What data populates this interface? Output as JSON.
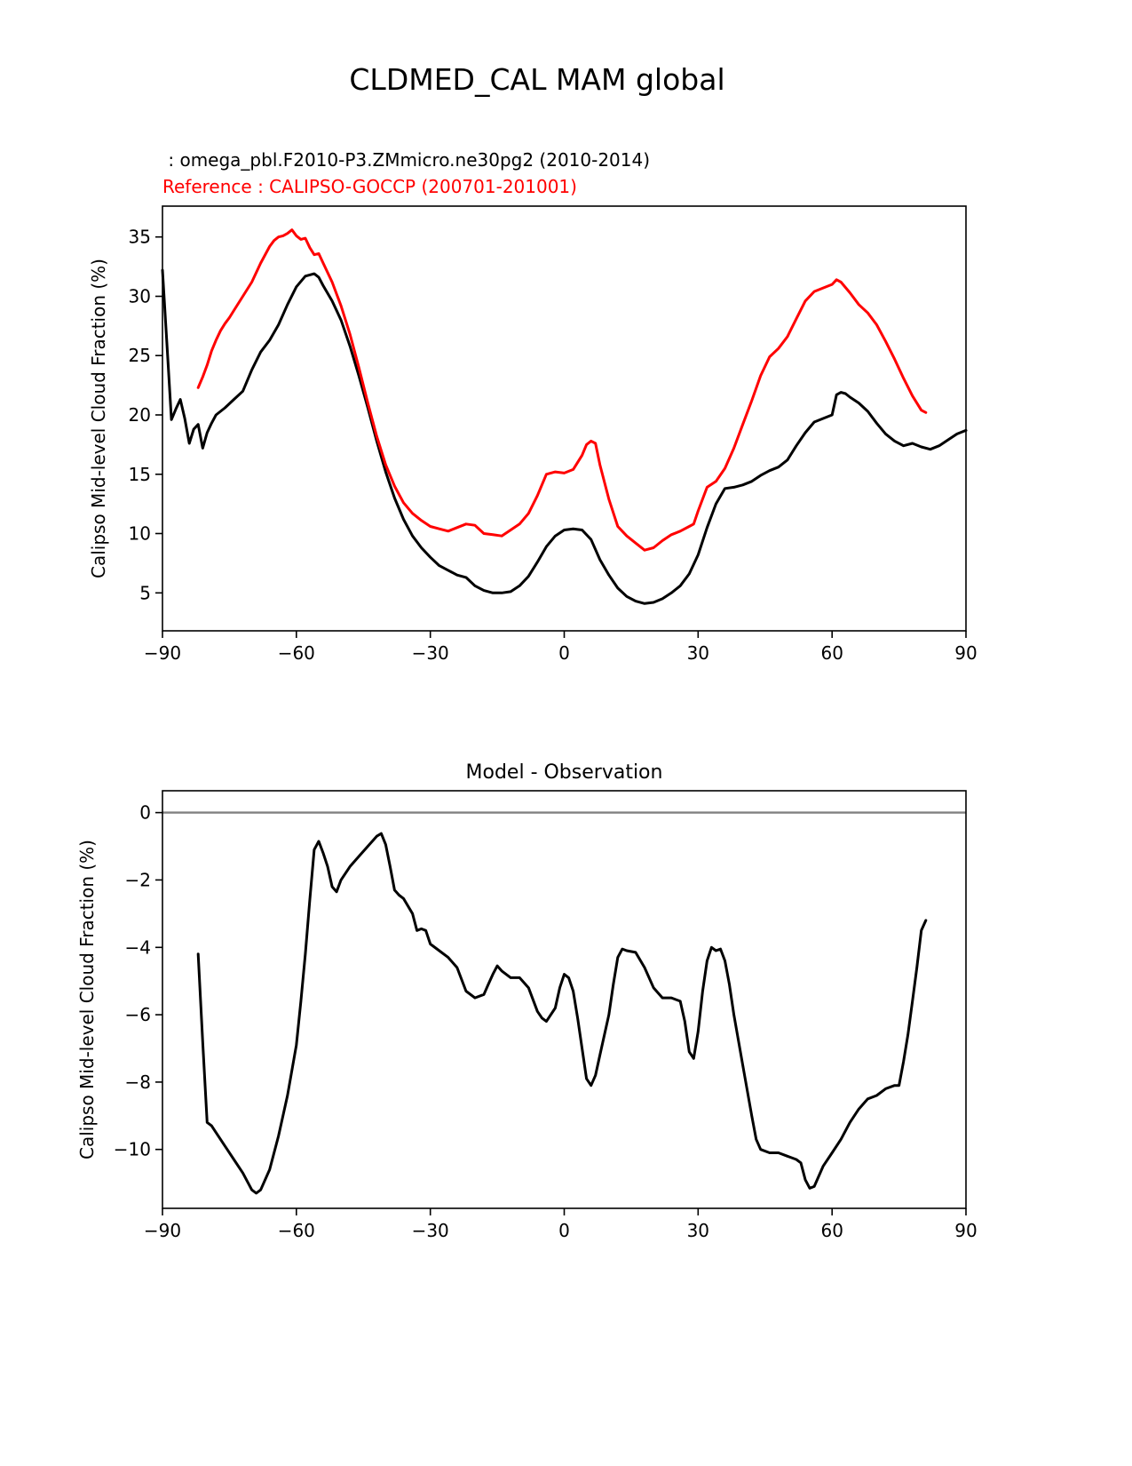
{
  "figure": {
    "title": "CLDMED_CAL MAM global",
    "subtitle_model": " : omega_pbl.F2010-P3.ZMmicro.ne30pg2 (2010-2014)",
    "subtitle_reference": "Reference : CALIPSO-GOCCP (200701-201001)",
    "model_color": "#000000",
    "reference_color": "#ff0000"
  },
  "chart_data": [
    {
      "type": "line",
      "name": "zonal-mean",
      "title": "",
      "xlabel": "",
      "ylabel": "Calipso Mid-level Cloud Fraction (%)",
      "xlim": [
        -90,
        90
      ],
      "ylim": [
        1.8,
        37.6
      ],
      "xticks": [
        -90,
        -60,
        -30,
        0,
        30,
        60,
        90
      ],
      "yticks": [
        5,
        10,
        15,
        20,
        25,
        30,
        35
      ],
      "grid": false,
      "legend": "none",
      "zero_line": false,
      "series": [
        {
          "name": "model",
          "label": "omega_pbl.F2010-P3.ZMmicro.ne30pg2 (2010-2014)",
          "color": "#000000",
          "x": [
            -90,
            -89,
            -88,
            -87,
            -86,
            -85,
            -84,
            -83,
            -82,
            -81,
            -80,
            -79,
            -78,
            -76,
            -74,
            -72,
            -70,
            -68,
            -66,
            -64,
            -62,
            -60,
            -58,
            -56,
            -55,
            -54,
            -52,
            -50,
            -48,
            -46,
            -44,
            -42,
            -40,
            -38,
            -36,
            -34,
            -32,
            -30,
            -28,
            -26,
            -24,
            -22,
            -20,
            -18,
            -16,
            -14,
            -12,
            -10,
            -8,
            -6,
            -4,
            -2,
            0,
            2,
            4,
            6,
            8,
            10,
            12,
            14,
            16,
            18,
            20,
            22,
            24,
            26,
            28,
            30,
            32,
            34,
            36,
            38,
            40,
            42,
            44,
            46,
            48,
            50,
            52,
            54,
            56,
            58,
            60,
            61,
            62,
            63,
            64,
            66,
            68,
            70,
            72,
            74,
            76,
            78,
            80,
            82,
            84,
            86,
            88,
            90
          ],
          "y": [
            32.2,
            26.0,
            19.6,
            20.5,
            21.3,
            19.7,
            17.6,
            18.8,
            19.2,
            17.2,
            18.5,
            19.3,
            20.0,
            20.6,
            21.3,
            22.0,
            23.8,
            25.3,
            26.3,
            27.6,
            29.3,
            30.8,
            31.7,
            31.9,
            31.6,
            30.9,
            29.6,
            28.0,
            25.8,
            23.3,
            20.6,
            17.8,
            15.2,
            13.0,
            11.2,
            9.8,
            8.8,
            8.0,
            7.3,
            6.9,
            6.5,
            6.3,
            5.6,
            5.2,
            5.0,
            5.0,
            5.1,
            5.6,
            6.4,
            7.6,
            8.9,
            9.8,
            10.3,
            10.4,
            10.3,
            9.5,
            7.8,
            6.5,
            5.4,
            4.7,
            4.3,
            4.1,
            4.2,
            4.5,
            5.0,
            5.6,
            6.6,
            8.2,
            10.5,
            12.5,
            13.8,
            13.9,
            14.1,
            14.4,
            14.9,
            15.3,
            15.6,
            16.2,
            17.4,
            18.5,
            19.4,
            19.7,
            20.0,
            21.7,
            21.9,
            21.8,
            21.5,
            21.0,
            20.3,
            19.3,
            18.4,
            17.8,
            17.4,
            17.6,
            17.3,
            17.1,
            17.4,
            17.9,
            18.4,
            18.7
          ]
        },
        {
          "name": "reference",
          "label": "CALIPSO-GOCCP (200701-201001)",
          "color": "#ff0000",
          "x": [
            -82,
            -81,
            -80,
            -79,
            -78,
            -77,
            -76,
            -75,
            -74,
            -72,
            -70,
            -68,
            -66,
            -65,
            -64,
            -63,
            -62,
            -61,
            -60,
            -59,
            -58,
            -57,
            -56,
            -55,
            -54,
            -52,
            -50,
            -48,
            -46,
            -44,
            -42,
            -40,
            -38,
            -36,
            -34,
            -32,
            -30,
            -28,
            -26,
            -24,
            -22,
            -20,
            -18,
            -16,
            -14,
            -12,
            -10,
            -8,
            -6,
            -4,
            -2,
            0,
            2,
            4,
            5,
            6,
            7,
            8,
            10,
            12,
            14,
            16,
            18,
            20,
            22,
            24,
            26,
            28,
            29,
            30,
            32,
            34,
            36,
            38,
            40,
            42,
            44,
            46,
            48,
            50,
            52,
            54,
            56,
            58,
            60,
            61,
            62,
            64,
            66,
            68,
            70,
            72,
            74,
            76,
            78,
            80,
            81
          ],
          "y": [
            22.3,
            23.2,
            24.2,
            25.4,
            26.3,
            27.1,
            27.7,
            28.2,
            28.8,
            30.0,
            31.2,
            32.8,
            34.2,
            34.7,
            35.0,
            35.1,
            35.3,
            35.6,
            35.1,
            34.8,
            34.9,
            34.1,
            33.5,
            33.6,
            32.8,
            31.2,
            29.2,
            26.8,
            24.0,
            21.0,
            18.2,
            15.8,
            14.0,
            12.6,
            11.7,
            11.1,
            10.6,
            10.4,
            10.2,
            10.5,
            10.8,
            10.7,
            10.0,
            9.9,
            9.8,
            10.3,
            10.8,
            11.7,
            13.2,
            15.0,
            15.2,
            15.1,
            15.4,
            16.6,
            17.5,
            17.8,
            17.6,
            15.8,
            12.9,
            10.6,
            9.8,
            9.2,
            8.6,
            8.8,
            9.4,
            9.9,
            10.2,
            10.6,
            10.8,
            11.9,
            13.9,
            14.4,
            15.5,
            17.2,
            19.2,
            21.2,
            23.3,
            24.9,
            25.6,
            26.6,
            28.1,
            29.6,
            30.4,
            30.7,
            31.0,
            31.4,
            31.2,
            30.3,
            29.3,
            28.6,
            27.6,
            26.2,
            24.7,
            23.1,
            21.6,
            20.4,
            20.2
          ]
        }
      ]
    },
    {
      "type": "line",
      "name": "difference",
      "title": "Model - Observation",
      "xlabel": "",
      "ylabel": "Calipso Mid-level Cloud Fraction (%)",
      "xlim": [
        -90,
        90
      ],
      "ylim": [
        -11.75,
        0.65
      ],
      "xticks": [
        -90,
        -60,
        -30,
        0,
        30,
        60,
        90
      ],
      "yticks": [
        0,
        -2,
        -4,
        -6,
        -8,
        -10
      ],
      "grid": false,
      "legend": "none",
      "zero_line": true,
      "zero_line_color": "#808080",
      "series": [
        {
          "name": "model-minus-obs",
          "label": "Model - Observation",
          "color": "#000000",
          "x": [
            -82,
            -81,
            -80,
            -79,
            -78,
            -76,
            -74,
            -72,
            -70,
            -69,
            -68,
            -66,
            -64,
            -62,
            -60,
            -59,
            -58,
            -57,
            -56,
            -55,
            -54,
            -53,
            -52,
            -51,
            -50,
            -48,
            -46,
            -44,
            -43,
            -42,
            -41,
            -40,
            -39,
            -38,
            -37,
            -36,
            -34,
            -33,
            -32,
            -31,
            -30,
            -28,
            -26,
            -24,
            -22,
            -20,
            -18,
            -17,
            -16,
            -15,
            -14,
            -12,
            -10,
            -8,
            -6,
            -5,
            -4,
            -2,
            -1,
            0,
            1,
            2,
            3,
            4,
            5,
            6,
            7,
            8,
            10,
            11,
            12,
            13,
            14,
            16,
            18,
            20,
            22,
            24,
            26,
            27,
            28,
            29,
            30,
            31,
            32,
            33,
            34,
            35,
            36,
            37,
            38,
            40,
            42,
            43,
            44,
            46,
            48,
            50,
            52,
            53,
            54,
            55,
            56,
            57,
            58,
            60,
            62,
            64,
            66,
            68,
            70,
            72,
            74,
            75,
            76,
            77,
            78,
            79,
            80,
            81
          ],
          "y": [
            -4.2,
            -6.8,
            -9.2,
            -9.3,
            -9.5,
            -9.9,
            -10.3,
            -10.7,
            -11.2,
            -11.3,
            -11.2,
            -10.6,
            -9.6,
            -8.4,
            -6.9,
            -5.6,
            -4.2,
            -2.6,
            -1.1,
            -0.85,
            -1.2,
            -1.6,
            -2.2,
            -2.35,
            -2.0,
            -1.6,
            -1.3,
            -1.0,
            -0.85,
            -0.7,
            -0.62,
            -0.95,
            -1.6,
            -2.3,
            -2.45,
            -2.55,
            -3.0,
            -3.5,
            -3.45,
            -3.5,
            -3.9,
            -4.1,
            -4.3,
            -4.6,
            -5.3,
            -5.5,
            -5.4,
            -5.1,
            -4.8,
            -4.55,
            -4.7,
            -4.9,
            -4.9,
            -5.2,
            -5.9,
            -6.1,
            -6.2,
            -5.8,
            -5.2,
            -4.8,
            -4.9,
            -5.3,
            -6.1,
            -7.0,
            -7.9,
            -8.1,
            -7.8,
            -7.2,
            -6.0,
            -5.1,
            -4.3,
            -4.05,
            -4.1,
            -4.15,
            -4.6,
            -5.2,
            -5.5,
            -5.5,
            -5.6,
            -6.2,
            -7.1,
            -7.3,
            -6.5,
            -5.3,
            -4.4,
            -4.0,
            -4.1,
            -4.05,
            -4.4,
            -5.1,
            -6.0,
            -7.5,
            -9.0,
            -9.7,
            -10.0,
            -10.1,
            -10.1,
            -10.2,
            -10.3,
            -10.4,
            -10.9,
            -11.15,
            -11.1,
            -10.8,
            -10.5,
            -10.1,
            -9.7,
            -9.2,
            -8.8,
            -8.5,
            -8.4,
            -8.2,
            -8.1,
            -8.1,
            -7.4,
            -6.6,
            -5.6,
            -4.6,
            -3.5,
            -3.2
          ]
        }
      ]
    }
  ]
}
